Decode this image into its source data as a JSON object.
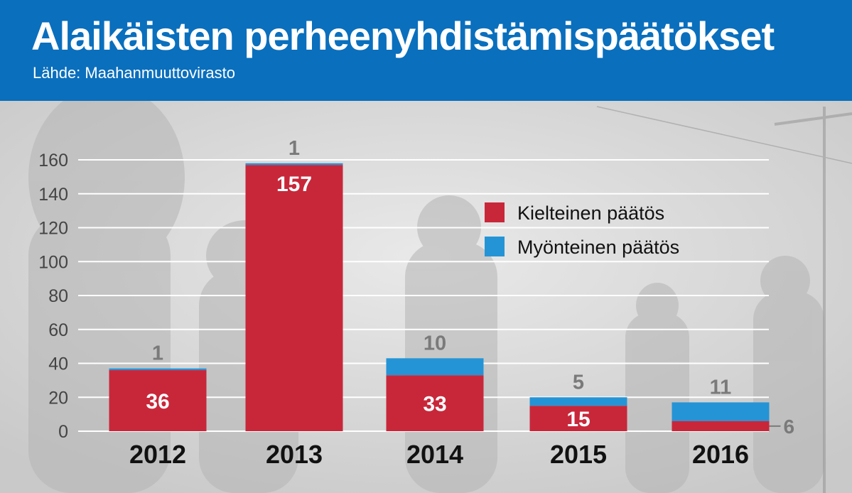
{
  "header": {
    "title": "Alaikäisten perheenyhdistämispäätökset",
    "source": "Lähde: Maahanmuuttovirasto"
  },
  "colors": {
    "header_bg": "#0a6fbd",
    "kielteinen": "#c8273a",
    "myonteinen": "#2494d6",
    "value_label": "#7a7a7a",
    "axis_text": "#444444",
    "category_text": "#111111"
  },
  "chart_data": {
    "type": "bar",
    "stacked": true,
    "categories": [
      "2012",
      "2013",
      "2014",
      "2015",
      "2016"
    ],
    "series": [
      {
        "name": "Kielteinen päätös",
        "values": [
          36,
          157,
          33,
          15,
          6
        ]
      },
      {
        "name": "Myönteinen päätös",
        "values": [
          1,
          1,
          10,
          5,
          11
        ]
      }
    ],
    "yticks": [
      "0",
      "20",
      "40",
      "60",
      "80",
      "100",
      "120",
      "140",
      "160"
    ],
    "ylim": [
      0,
      160
    ],
    "grid": true,
    "legend_position": "top-right",
    "xlabel": "",
    "ylabel": ""
  }
}
